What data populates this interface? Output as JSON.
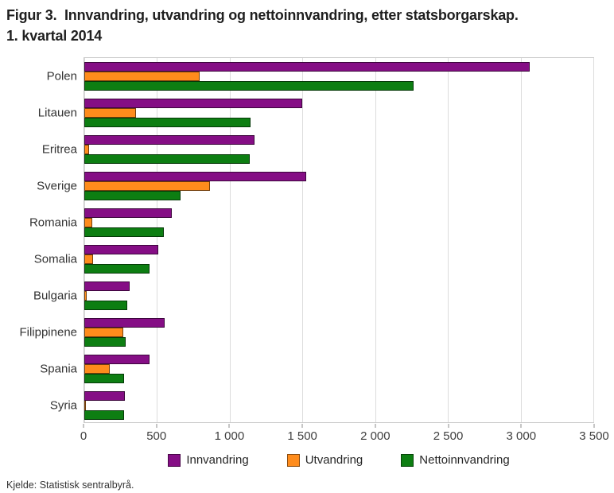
{
  "title": {
    "line1": "Figur 3.  Innvandring, utvandring og nettoinnvandring, etter statsborgarskap.",
    "line2": "1. kvartal 2014"
  },
  "source": "Kjelde: Statistisk sentralbyrå.",
  "colors": {
    "innvandring": "#850E85",
    "utvandring": "#FF8C1C",
    "nettoinnvandring": "#0D7E12",
    "gridline": "#DCDCDC",
    "axis_text": "#404040",
    "plot_border": "#C9C9C9"
  },
  "chart_data": {
    "type": "bar",
    "orientation": "horizontal",
    "title": "Figur 3. Innvandring, utvandring og nettoinnvandring, etter statsborgarskap. 1. kvartal 2014",
    "categories": [
      "Polen",
      "Litauen",
      "Eritrea",
      "Sverige",
      "Romania",
      "Somalia",
      "Bulgaria",
      "Filippinene",
      "Spania",
      "Syria"
    ],
    "series": [
      {
        "name": "Innvandring",
        "color_key": "innvandring",
        "values": [
          3060,
          1500,
          1170,
          1525,
          600,
          510,
          310,
          555,
          450,
          280
        ]
      },
      {
        "name": "Utvandring",
        "color_key": "utvandring",
        "values": [
          795,
          355,
          35,
          865,
          55,
          60,
          15,
          270,
          175,
          5
        ]
      },
      {
        "name": "Nettoinnvandring",
        "color_key": "nettoinnvandring",
        "values": [
          2265,
          1145,
          1135,
          660,
          545,
          450,
          295,
          285,
          275,
          275
        ]
      }
    ],
    "xlabel": "",
    "ylabel": "",
    "xlim": [
      0,
      3500
    ],
    "xticks": [
      0,
      500,
      1000,
      1500,
      2000,
      2500,
      3000,
      3500
    ],
    "xtick_labels": [
      "0",
      "500",
      "1 000",
      "1 500",
      "2 000",
      "2 500",
      "3 000",
      "3 500"
    ],
    "grid": true,
    "legend_position": "bottom"
  }
}
